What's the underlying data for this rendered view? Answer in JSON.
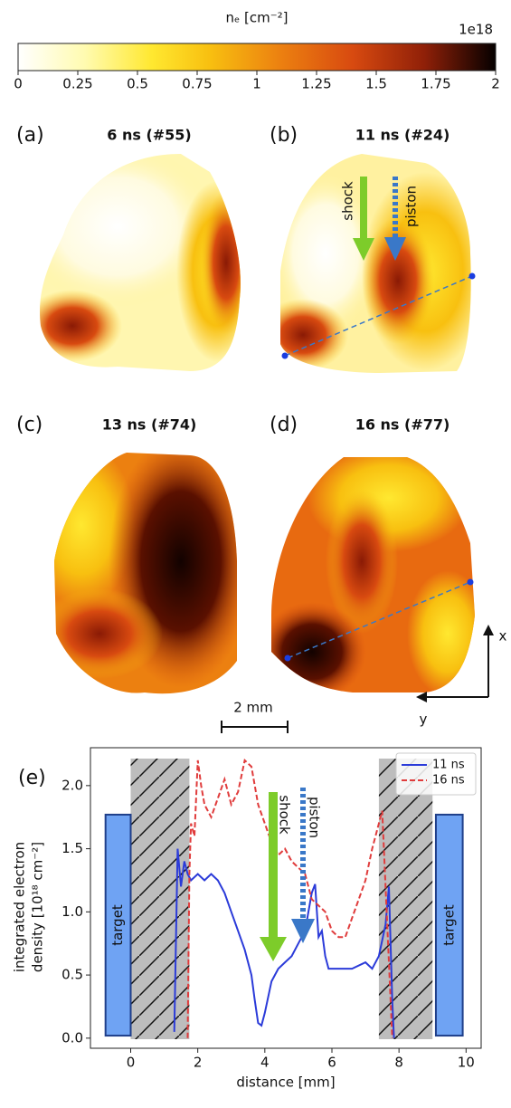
{
  "colorbar": {
    "title": "nₑ [cm⁻²]",
    "multiplier": "1e18",
    "lim": [
      0,
      2
    ],
    "ticks": [
      0,
      0.25,
      0.5,
      0.75,
      1,
      1.25,
      1.5,
      1.75,
      2
    ]
  },
  "panels": [
    {
      "label": "(a)",
      "title": "6 ns (#55)"
    },
    {
      "label": "(b)",
      "title": "11 ns (#24)"
    },
    {
      "label": "(c)",
      "title": "13 ns (#74)"
    },
    {
      "label": "(d)",
      "title": "16 ns (#77)"
    }
  ],
  "annotations": {
    "shock": "shock",
    "piston": "piston",
    "scale_bar": "2 mm",
    "axis_x": "x",
    "axis_y": "y"
  },
  "chart_data": {
    "type": "line",
    "label": "(e)",
    "xlabel": "distance [mm]",
    "ylabel": [
      "integrated electron",
      "density [10¹⁸ cm⁻²]"
    ],
    "xlim": [
      -1.2,
      10.45
    ],
    "ylim": [
      -0.08,
      2.3
    ],
    "xticks": [
      0,
      2,
      4,
      6,
      8,
      10
    ],
    "yticks": [
      {
        "value": 0,
        "label": "0.0"
      },
      {
        "value": 0.5,
        "label": "0.5"
      },
      {
        "value": 1,
        "label": "1.0"
      },
      {
        "value": 1.5,
        "label": "1.5"
      },
      {
        "value": 2,
        "label": "2.0"
      }
    ],
    "legend": "upper right",
    "series": [
      {
        "name": "11 ns",
        "color": "#2b3bd9",
        "style": "solid",
        "x": [
          1.3,
          1.4,
          1.5,
          1.6,
          1.7,
          1.8,
          2.0,
          2.2,
          2.4,
          2.6,
          2.8,
          3.0,
          3.2,
          3.4,
          3.6,
          3.7,
          3.8,
          3.9,
          4.0,
          4.2,
          4.4,
          4.6,
          4.8,
          5.0,
          5.2,
          5.4,
          5.5,
          5.6,
          5.7,
          5.8,
          5.9,
          6.2,
          6.6,
          7.0,
          7.2,
          7.4,
          7.6,
          7.7,
          7.8,
          7.85
        ],
        "values": [
          0.05,
          1.5,
          1.2,
          1.4,
          1.3,
          1.25,
          1.3,
          1.25,
          1.3,
          1.25,
          1.15,
          1.0,
          0.85,
          0.7,
          0.5,
          0.3,
          0.12,
          0.1,
          0.2,
          0.45,
          0.55,
          0.6,
          0.65,
          0.75,
          0.85,
          1.15,
          1.22,
          0.8,
          0.85,
          0.65,
          0.55,
          0.55,
          0.55,
          0.6,
          0.55,
          0.65,
          0.9,
          1.2,
          0.3,
          0.0
        ]
      },
      {
        "name": "16 ns",
        "color": "#e03c3c",
        "style": "dashed",
        "x": [
          1.7,
          1.75,
          1.8,
          1.9,
          2.0,
          2.1,
          2.2,
          2.4,
          2.6,
          2.8,
          3.0,
          3.2,
          3.4,
          3.6,
          3.8,
          4.0,
          4.2,
          4.4,
          4.6,
          4.8,
          5.0,
          5.2,
          5.4,
          5.6,
          5.8,
          6.0,
          6.2,
          6.4,
          6.6,
          6.8,
          7.0,
          7.2,
          7.4,
          7.5,
          7.6,
          7.7,
          7.8
        ],
        "values": [
          0.0,
          1.3,
          1.7,
          1.6,
          2.2,
          2.0,
          1.85,
          1.75,
          1.9,
          2.05,
          1.85,
          1.95,
          2.2,
          2.15,
          1.85,
          1.7,
          1.55,
          1.45,
          1.5,
          1.4,
          1.35,
          1.3,
          1.1,
          1.05,
          1.0,
          0.85,
          0.8,
          0.8,
          0.95,
          1.1,
          1.25,
          1.5,
          1.7,
          1.8,
          1.2,
          0.6,
          0.0
        ]
      }
    ],
    "annotations": {
      "target_left": "target",
      "target_right": "target",
      "shock": "shock",
      "piston": "piston"
    }
  }
}
